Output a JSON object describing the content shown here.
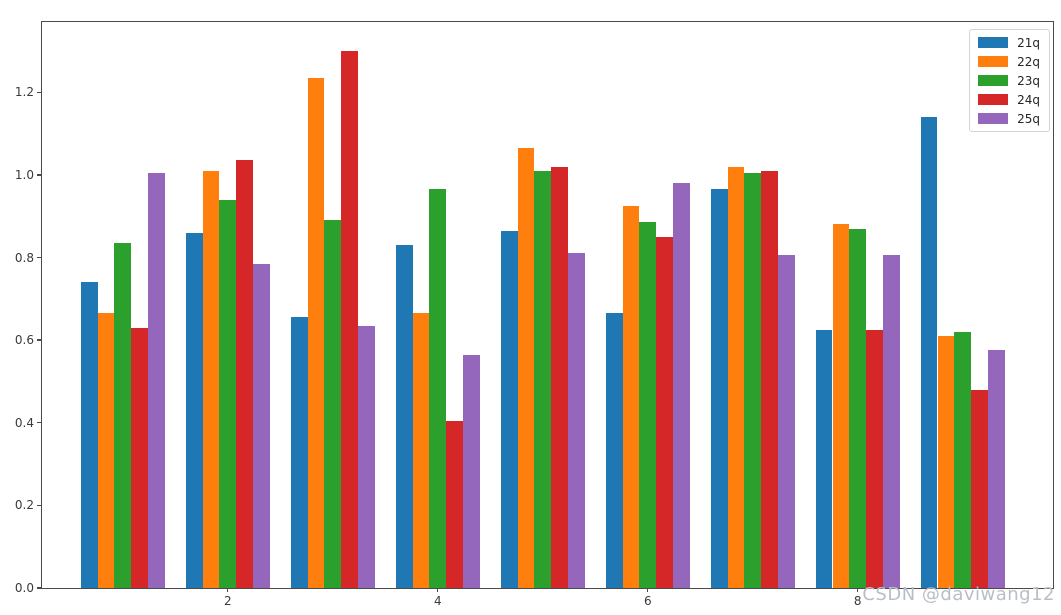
{
  "figure": {
    "watermark": "CSDN @daviwang12"
  },
  "chart_data": {
    "type": "bar",
    "title": "",
    "xlabel": "",
    "ylabel": "",
    "categories": [
      1,
      2,
      3,
      4,
      5,
      6,
      7,
      8,
      9
    ],
    "series": [
      {
        "name": "21q",
        "color": "#1f77b4",
        "values": [
          0.74,
          0.86,
          0.655,
          0.83,
          0.865,
          0.665,
          0.965,
          0.625,
          1.14
        ]
      },
      {
        "name": "22q",
        "color": "#ff7f0e",
        "values": [
          0.665,
          1.01,
          1.235,
          0.665,
          1.065,
          0.925,
          1.02,
          0.88,
          0.61
        ]
      },
      {
        "name": "23q",
        "color": "#2ca02c",
        "values": [
          0.835,
          0.94,
          0.89,
          0.965,
          1.01,
          0.885,
          1.005,
          0.87,
          0.62
        ]
      },
      {
        "name": "24q",
        "color": "#d62728",
        "values": [
          0.63,
          1.035,
          1.3,
          0.405,
          1.02,
          0.85,
          1.01,
          0.625,
          0.48
        ]
      },
      {
        "name": "25q",
        "color": "#9467bd",
        "values": [
          1.005,
          0.785,
          0.635,
          0.565,
          0.81,
          0.98,
          0.805,
          0.805,
          0.575
        ]
      }
    ],
    "xticks": [
      2,
      4,
      6,
      8
    ],
    "yticks": [
      0.0,
      0.2,
      0.4,
      0.6,
      0.8,
      1.0,
      1.2
    ],
    "xlim": [
      0.23,
      9.86
    ],
    "ylim": [
      0,
      1.37
    ],
    "bar_group_width": 0.8,
    "grid": false,
    "legend_position": "upper-right",
    "legend_entries": [
      "21q",
      "22q",
      "23q",
      "24q",
      "25q"
    ]
  },
  "style": {
    "axis_color": "#4a4a4a",
    "tick_label_color": "#3a3a3a",
    "watermark_color": "#b9bec6",
    "background": "#ffffff",
    "legend_border": "#d4d4d4"
  }
}
